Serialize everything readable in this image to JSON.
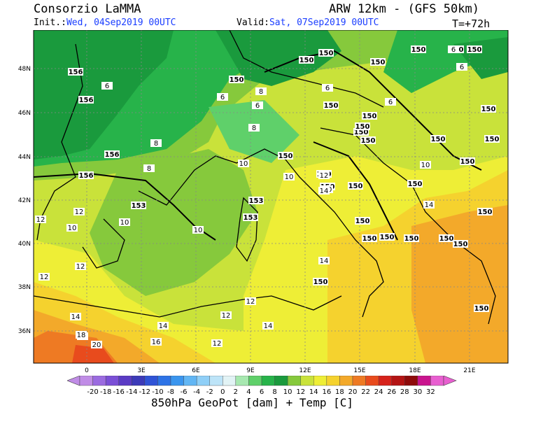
{
  "header": {
    "agency": "Consorzio LaMMA",
    "model": "ARW 12km - (GFS 50km)",
    "init_prefix": "Init.:",
    "init_value": "Wed, 04Sep2019 00UTC",
    "valid_prefix": "Valid:",
    "valid_value": "Sat, 07Sep2019 00UTC",
    "lead_time": "T=+72h"
  },
  "map": {
    "lat_labels": [
      "48N",
      "46N",
      "44N",
      "42N",
      "40N",
      "38N",
      "36N"
    ],
    "lon_labels": [
      "0",
      "3E",
      "6E",
      "9E",
      "12E",
      "15E",
      "18E",
      "21E"
    ],
    "geopotential_labels": [
      "150",
      "150",
      "150",
      "150",
      "150",
      "150",
      "150",
      "150",
      "150",
      "150",
      "150",
      "150",
      "150",
      "150",
      "150",
      "150",
      "150",
      "150",
      "150",
      "150",
      "150",
      "150",
      "150",
      "150",
      "150",
      "156",
      "156",
      "156",
      "156",
      "153",
      "153",
      "153",
      "150",
      "150",
      "150",
      "150",
      "150",
      "150"
    ],
    "temperature_labels": [
      "6",
      "6",
      "6",
      "6",
      "6",
      "6",
      "6",
      "8",
      "8",
      "8",
      "8",
      "10",
      "10",
      "10",
      "10",
      "10",
      "10",
      "10",
      "12",
      "12",
      "12",
      "12",
      "12",
      "12",
      "12",
      "12",
      "14",
      "14",
      "14",
      "14",
      "14",
      "14",
      "16",
      "16",
      "18",
      "20"
    ]
  },
  "legend": {
    "ticks": [
      "-20",
      "-18",
      "-16",
      "-14",
      "-12",
      "-10",
      "-8",
      "-6",
      "-4",
      "-2",
      "0",
      "2",
      "4",
      "6",
      "8",
      "10",
      "12",
      "14",
      "16",
      "18",
      "20",
      "22",
      "24",
      "26",
      "28",
      "30",
      "32"
    ],
    "colors": [
      "#c08ce6",
      "#9b6be0",
      "#7a4fd6",
      "#5a3bc4",
      "#3c3ab8",
      "#2f53d6",
      "#2d73e6",
      "#3a95ee",
      "#62b6f4",
      "#8fcff7",
      "#bde4f8",
      "#e2f3f5",
      "#a7e8b0",
      "#5fd06a",
      "#27b34a",
      "#1a9a3d",
      "#86c93c",
      "#c9e23a",
      "#eeee36",
      "#f5d22e",
      "#f3a92a",
      "#ee7a23",
      "#e84b1d",
      "#d6221b",
      "#b41414",
      "#8e0b0b",
      "#c9148e",
      "#e85fd0"
    ],
    "caption": "850hPa GeoPot [dam] + Temp [C]"
  }
}
